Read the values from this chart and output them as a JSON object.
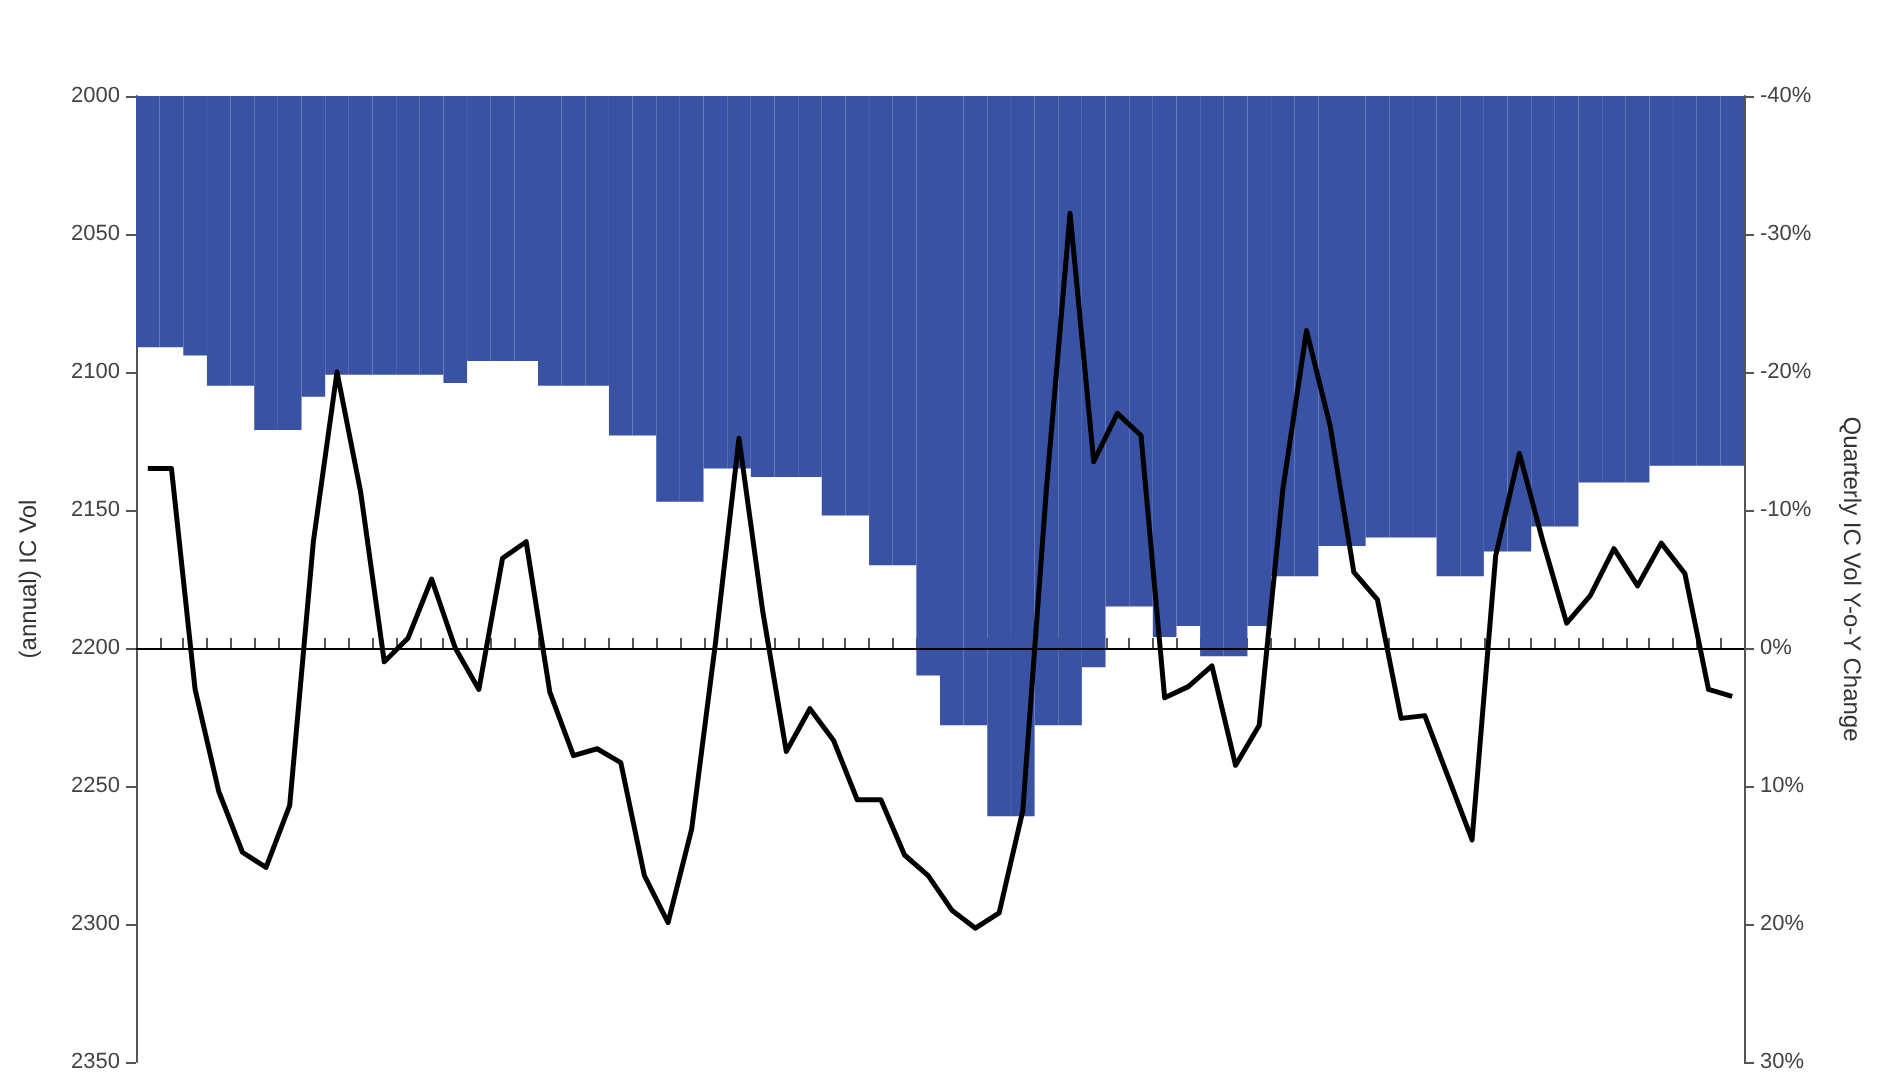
{
  "chart_data": {
    "type": "bar",
    "ylabel": "(annual) IC Vol",
    "y2label": "Quarterly IC Vol Y-o-Y Change",
    "tick_labels": "y",
    "grid": false,
    "categories": [
      null,
      null,
      null,
      null,
      null,
      null,
      null,
      null,
      null,
      null,
      null,
      null,
      null,
      null,
      null,
      null,
      null,
      null,
      null,
      null,
      null,
      null,
      null,
      null,
      null,
      null,
      null,
      null,
      null,
      null,
      null,
      null,
      null,
      null,
      null,
      null,
      null,
      null,
      null,
      null,
      null,
      null,
      null,
      null,
      null,
      null,
      null,
      null,
      null,
      null,
      null,
      null,
      null,
      null,
      null,
      null,
      null,
      null,
      null,
      null,
      null,
      null,
      null,
      null,
      null,
      null,
      null,
      null
    ],
    "ylim": [
      2350,
      2000
    ],
    "yticks": [
      2000,
      2050,
      2100,
      2150,
      2200,
      2250,
      2300,
      2350
    ],
    "y2lim": [
      30,
      -40
    ],
    "y2ticks": [
      {
        "value": -40,
        "label": "-40%"
      },
      {
        "value": -30,
        "label": "-30%"
      },
      {
        "value": -20,
        "label": "-20%"
      },
      {
        "value": -10,
        "label": "-10%"
      },
      {
        "value": 0,
        "label": "0%"
      },
      {
        "value": 10,
        "label": "10%"
      },
      {
        "value": 20,
        "label": "20%"
      },
      {
        "value": 30,
        "label": "30%"
      }
    ],
    "ref_lines": [
      {
        "axis": "y2",
        "value": 0,
        "color": "#000000"
      }
    ],
    "series": [
      {
        "color": "#3a52a3",
        "axis": "y",
        "values": [
          2091,
          2091,
          2094,
          2105,
          2105,
          2121,
          2121,
          2109,
          2101,
          2101,
          2101,
          2101,
          2101,
          2104,
          2096,
          2096,
          2096,
          2105,
          2105,
          2105,
          2123,
          2123,
          2147,
          2147,
          2135,
          2135,
          2138,
          2138,
          2138,
          2152,
          2152,
          2170,
          2170,
          2210,
          2228,
          2228,
          2261,
          2261,
          2228,
          2228,
          2207,
          2185,
          2185,
          2196,
          2192,
          2203,
          2203,
          2192,
          2174,
          2174,
          2163,
          2163,
          2160,
          2160,
          2160,
          2174,
          2174,
          2165,
          2165,
          2156,
          2156,
          2140,
          2140,
          2140,
          2134,
          2134,
          2134,
          2134
        ]
      },
      {
        "type": "line",
        "color": "#000000",
        "axis": "y2",
        "values": [
          -13,
          -13,
          3,
          10.4,
          14.8,
          15.9,
          11.4,
          -7.7,
          -20,
          -11.3,
          1,
          -0.7,
          -5,
          0,
          3,
          -6.5,
          -7.7,
          3.2,
          7.8,
          7.3,
          8.3,
          16.5,
          19.9,
          13.1,
          -0.3,
          -15.2,
          -2.7,
          7.5,
          4.4,
          6.7,
          11,
          11,
          15,
          16.5,
          19,
          20.3,
          19.2,
          11.8,
          -11.5,
          -31.5,
          -13.5,
          -17,
          -15.4,
          3.6,
          2.8,
          1.3,
          8.5,
          5.6,
          -11.5,
          -23,
          -16.1,
          -5.5,
          -3.5,
          5.1,
          4.9,
          9.4,
          13.9,
          -6.7,
          -14.1,
          -7.7,
          -1.8,
          -3.8,
          -7.2,
          -4.5,
          -7.6,
          -5.4,
          3,
          3.5
        ]
      }
    ]
  }
}
